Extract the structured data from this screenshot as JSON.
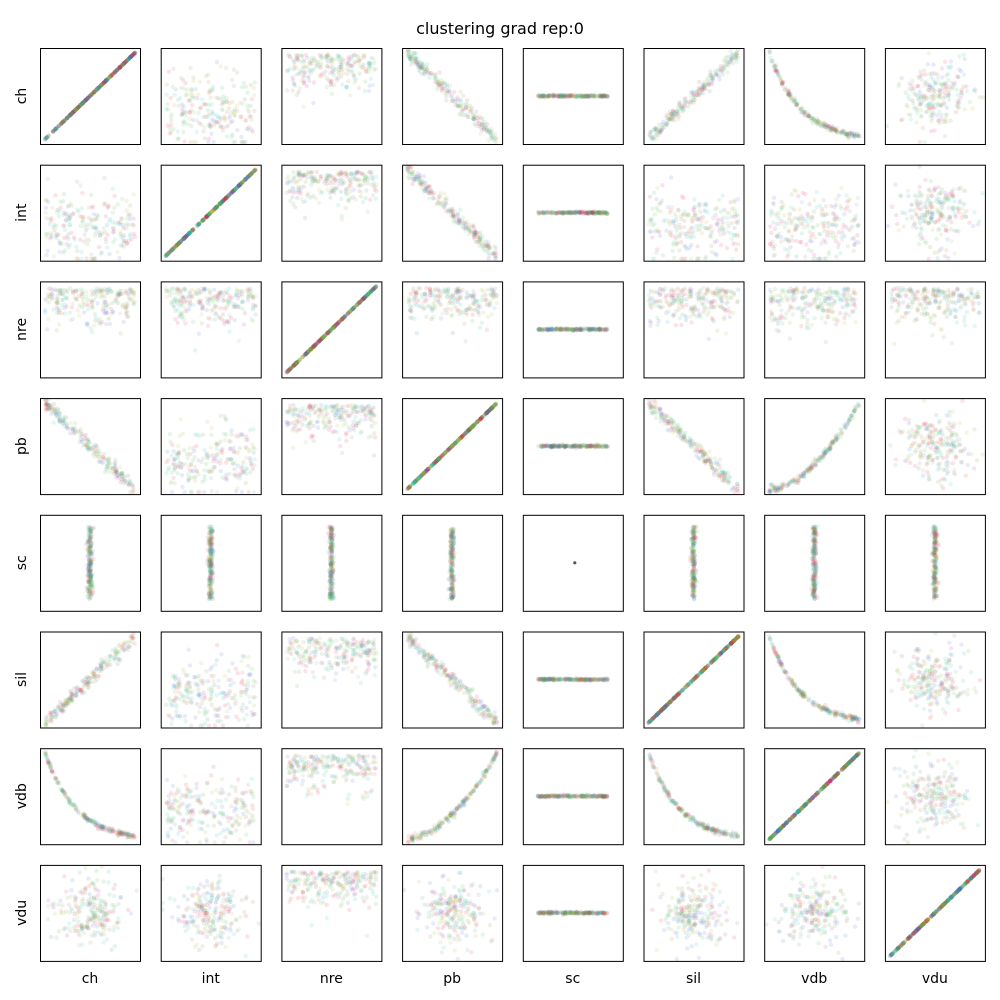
{
  "chart_data": {
    "type": "scatter",
    "title": "clustering grad rep:0",
    "variables": [
      "ch",
      "int",
      "nre",
      "pb",
      "sc",
      "sil",
      "vdb",
      "vdu"
    ],
    "axes": {
      "ticks": "none",
      "grid": false,
      "range": [
        0,
        1
      ]
    },
    "cluster_colors": [
      "#e6194b",
      "#3cb44b",
      "#4363d8",
      "#1fbfaa",
      "#8a7a3a",
      "#b0b030"
    ],
    "point_opacity": 0.06,
    "relationships": [
      [
        "diag",
        "band",
        "tri",
        "neg",
        "flatline",
        "pos",
        "decay",
        "cloud"
      ],
      [
        "band",
        "diag",
        "tri",
        "neg",
        "flatline",
        "band",
        "band",
        "cloud"
      ],
      [
        "tri",
        "tri",
        "diag",
        "tri",
        "flatline",
        "tri",
        "tri",
        "tri"
      ],
      [
        "neg",
        "band",
        "tri",
        "diag",
        "flatline",
        "neg",
        "grow",
        "cloud"
      ],
      [
        "vline",
        "vline",
        "vline",
        "vline",
        "dot",
        "vline",
        "vline",
        "vline"
      ],
      [
        "pos",
        "band",
        "tri",
        "neg",
        "flatline",
        "diag",
        "decay",
        "cloud"
      ],
      [
        "decay",
        "band",
        "tri",
        "grow",
        "flatline",
        "decay",
        "diag",
        "cloud"
      ],
      [
        "cloud",
        "cloud",
        "tri",
        "cloud",
        "flatline",
        "cloud",
        "cloud",
        "diag"
      ]
    ]
  }
}
